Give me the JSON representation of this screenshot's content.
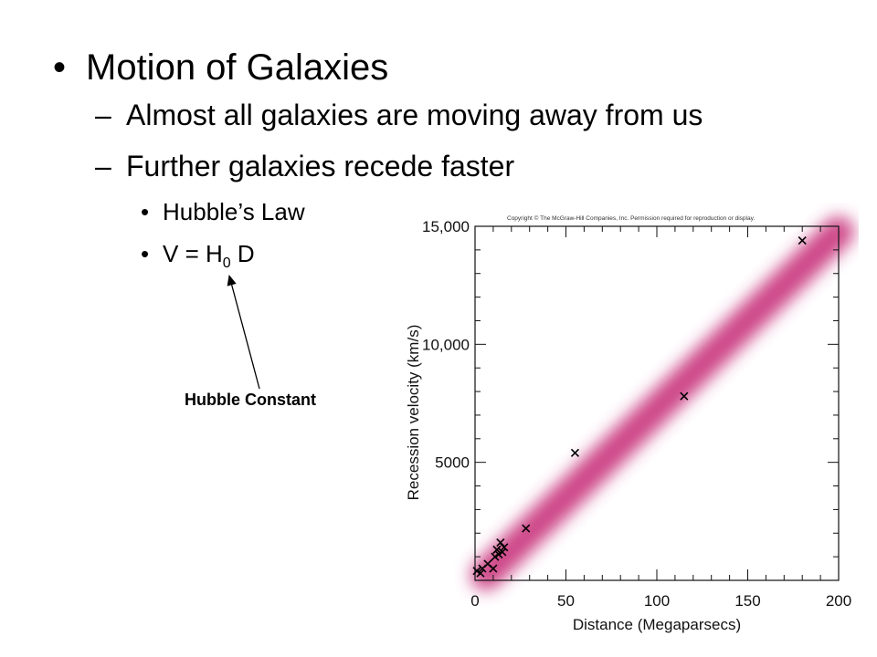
{
  "slide": {
    "title_bullet": "•",
    "title": "Motion of Galaxies",
    "subpoints": [
      {
        "marker": "–",
        "text": "Almost all galaxies are moving away from us"
      },
      {
        "marker": "–",
        "text": "Further galaxies recede faster"
      }
    ],
    "level3": [
      {
        "marker": "•",
        "text": "Hubble’s Law"
      },
      {
        "marker": "•",
        "text": "V = H",
        "sub": "0",
        "after": " D"
      }
    ],
    "annotation": "Hubble Constant"
  },
  "chart_data": {
    "type": "scatter",
    "title": "",
    "copyright": "Copyright © The McGraw-Hill Companies, Inc. Permission required for reproduction or display.",
    "xlabel": "Distance (Megaparsecs)",
    "ylabel": "Recession velocity (km/s)",
    "xlim": [
      0,
      200
    ],
    "ylim": [
      0,
      15000
    ],
    "xticks": [
      0,
      50,
      100,
      150,
      200
    ],
    "xtick_labels": [
      "0",
      "50",
      "100",
      "150",
      "200"
    ],
    "yticks": [
      5000,
      10000,
      15000
    ],
    "ytick_labels": [
      "5000",
      "10,000",
      "15,000"
    ],
    "grid": false,
    "legend": "none",
    "trend_band": {
      "x": [
        0,
        200
      ],
      "y": [
        0,
        15000
      ],
      "color": "#c8337a"
    },
    "marker_color": "#000000",
    "points": [
      {
        "x": 1,
        "y": 400
      },
      {
        "x": 3,
        "y": 300
      },
      {
        "x": 4,
        "y": 500
      },
      {
        "x": 7,
        "y": 700
      },
      {
        "x": 10,
        "y": 500
      },
      {
        "x": 11,
        "y": 1000
      },
      {
        "x": 12,
        "y": 1300
      },
      {
        "x": 13,
        "y": 1100
      },
      {
        "x": 14,
        "y": 1600
      },
      {
        "x": 15,
        "y": 1200
      },
      {
        "x": 16,
        "y": 1400
      },
      {
        "x": 28,
        "y": 2200
      },
      {
        "x": 55,
        "y": 5400
      },
      {
        "x": 115,
        "y": 7800
      },
      {
        "x": 180,
        "y": 14400
      }
    ]
  }
}
